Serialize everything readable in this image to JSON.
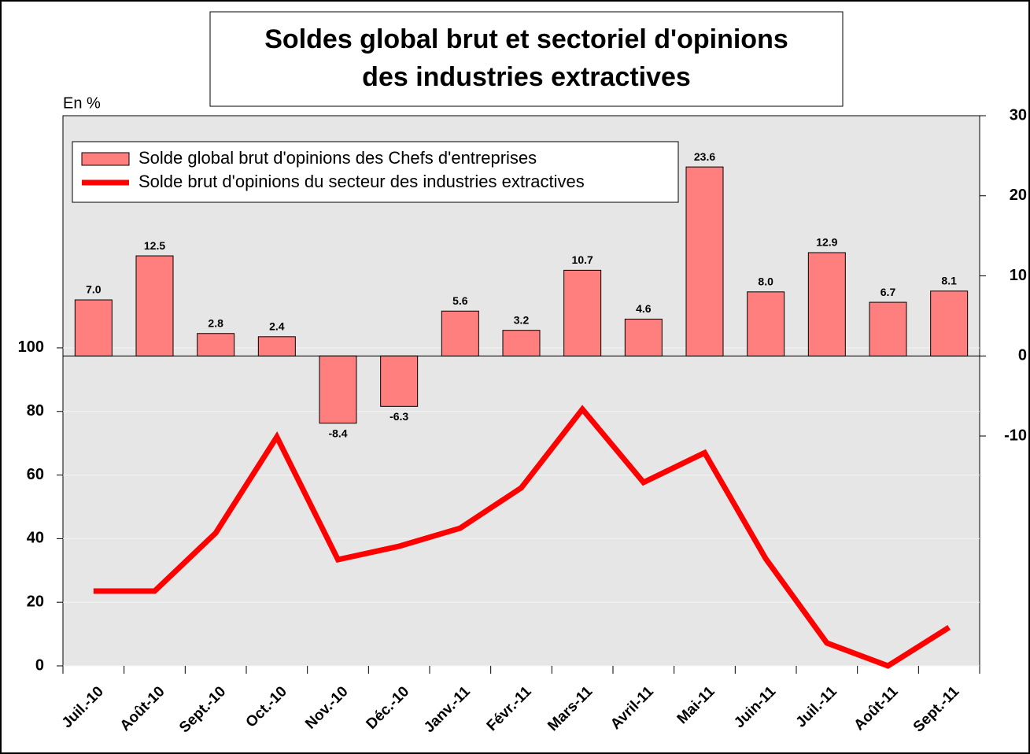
{
  "chart_data": {
    "type": "combo",
    "title": [
      "Soldes global brut et sectoriel d'opinions",
      "des industries extractives"
    ],
    "ylabel": "En %",
    "categories": [
      "Juil.-10",
      "Août-10",
      "Sept.-10",
      "Oct.-10",
      "Nov.-10",
      "Déc.-10",
      "Janv.-11",
      "Févr.-11",
      "Mars-11",
      "Avril-11",
      "Mai-11",
      "Juin-11",
      "Juil.-11",
      "Août-11",
      "Sept.-11"
    ],
    "series": [
      {
        "name": "Solde global brut d'opinions des Chefs d'entreprises",
        "type": "bar",
        "axis": "y2",
        "color": "#ff7f7f",
        "values": [
          7.0,
          12.5,
          2.8,
          2.4,
          -8.4,
          -6.3,
          5.6,
          3.2,
          10.7,
          4.6,
          23.6,
          8.0,
          12.9,
          6.7,
          8.1
        ],
        "value_labels": [
          "7.0",
          "12.5",
          "2.8",
          "2.4",
          "-8.4",
          "-6.3",
          "5.6",
          "3.2",
          "10.7",
          "4.6",
          "23.6",
          "8.0",
          "12.9",
          "6.7",
          "8.1"
        ]
      },
      {
        "name": "Solde brut d'opinions du secteur des industries extractives",
        "type": "line",
        "axis": "y",
        "color": "#ff0000",
        "values": [
          23.5,
          23.5,
          41.8,
          72,
          33.4,
          37.6,
          43.3,
          56,
          80.7,
          57.7,
          67,
          33.7,
          7.2,
          0,
          12.1
        ]
      }
    ],
    "ylim": [
      0,
      173
    ],
    "yticks": [
      0,
      20,
      40,
      60,
      80,
      100
    ],
    "y2lim": [
      -38.7,
      30
    ],
    "y2ticks": [
      -10,
      0,
      10,
      20,
      30
    ],
    "grid": true,
    "legend": "top-left"
  }
}
